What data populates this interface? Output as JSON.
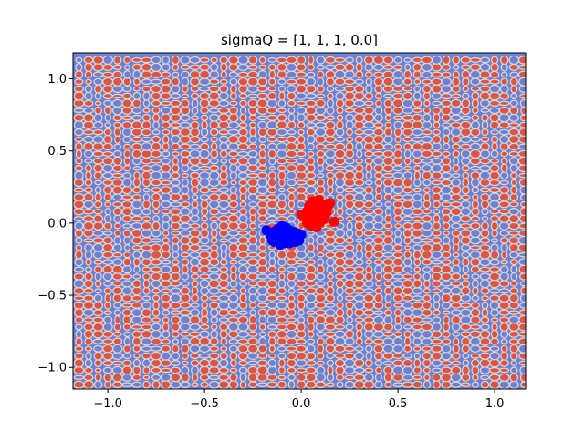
{
  "chart_data": {
    "type": "scatter",
    "title": "sigmaQ = [1, 1, 1, 0.0]",
    "xlabel": "",
    "ylabel": "",
    "xlim": [
      -1.18,
      1.16
    ],
    "ylim": [
      -1.15,
      1.18
    ],
    "x_ticks": [
      -1.0,
      -0.5,
      0.0,
      0.5,
      1.0
    ],
    "x_tick_labels": [
      "−1.0",
      "−0.5",
      "0.0",
      "0.5",
      "1.0"
    ],
    "y_ticks": [
      -1.0,
      -0.5,
      0.0,
      0.5,
      1.0
    ],
    "y_tick_labels": [
      "−1.0",
      "−0.5",
      "0.0",
      "0.5",
      "1.0"
    ],
    "grid": false,
    "legend": "none",
    "background": {
      "type": "filled-contour",
      "pattern": "periodic grid of small closed regions",
      "base_color": "#6b82d6",
      "blob_fill": "#d9574a",
      "blob_outline": "#e8d8c8"
    },
    "series": [
      {
        "color": "#0000ff",
        "points": [
          [
            -0.18,
            -0.05
          ],
          [
            -0.16,
            -0.08
          ],
          [
            -0.15,
            -0.12
          ],
          [
            -0.14,
            -0.06
          ],
          [
            -0.13,
            -0.1
          ],
          [
            -0.12,
            -0.04
          ],
          [
            -0.12,
            -0.13
          ],
          [
            -0.11,
            -0.08
          ],
          [
            -0.1,
            -0.02
          ],
          [
            -0.1,
            -0.11
          ],
          [
            -0.09,
            -0.06
          ],
          [
            -0.09,
            -0.14
          ],
          [
            -0.08,
            -0.09
          ],
          [
            -0.08,
            -0.03
          ],
          [
            -0.07,
            -0.12
          ],
          [
            -0.07,
            -0.07
          ],
          [
            -0.06,
            -0.1
          ],
          [
            -0.06,
            -0.05
          ],
          [
            -0.05,
            -0.13
          ],
          [
            -0.05,
            -0.08
          ],
          [
            -0.04,
            -0.11
          ],
          [
            -0.04,
            -0.06
          ],
          [
            -0.03,
            -0.09
          ],
          [
            -0.03,
            -0.13
          ],
          [
            -0.02,
            -0.07
          ],
          [
            -0.02,
            -0.1
          ],
          [
            -0.01,
            -0.12
          ],
          [
            0.0,
            -0.08
          ],
          [
            -0.11,
            -0.15
          ],
          [
            -0.14,
            -0.13
          ],
          [
            -0.1,
            -0.06
          ],
          [
            -0.08,
            -0.12
          ],
          [
            -0.06,
            -0.14
          ],
          [
            -0.12,
            -0.09
          ],
          [
            -0.09,
            -0.1
          ]
        ]
      },
      {
        "color": "#ff0000",
        "points": [
          [
            0.0,
            0.06
          ],
          [
            0.02,
            0.04
          ],
          [
            0.03,
            0.08
          ],
          [
            0.03,
            0.0
          ],
          [
            0.04,
            0.12
          ],
          [
            0.05,
            0.05
          ],
          [
            0.05,
            -0.02
          ],
          [
            0.06,
            0.1
          ],
          [
            0.06,
            0.15
          ],
          [
            0.07,
            0.02
          ],
          [
            0.07,
            0.08
          ],
          [
            0.08,
            0.12
          ],
          [
            0.08,
            -0.03
          ],
          [
            0.09,
            0.05
          ],
          [
            0.09,
            0.16
          ],
          [
            0.1,
            0.09
          ],
          [
            0.1,
            0.01
          ],
          [
            0.11,
            0.13
          ],
          [
            0.11,
            0.06
          ],
          [
            0.12,
            0.1
          ],
          [
            0.12,
            0.03
          ],
          [
            0.13,
            0.07
          ],
          [
            0.14,
            0.12
          ],
          [
            0.15,
            0.14
          ],
          [
            0.17,
            0.01
          ],
          [
            0.04,
            0.09
          ],
          [
            0.06,
            0.04
          ],
          [
            0.08,
            0.07
          ],
          [
            0.1,
            0.11
          ],
          [
            0.05,
            0.13
          ]
        ]
      }
    ]
  }
}
